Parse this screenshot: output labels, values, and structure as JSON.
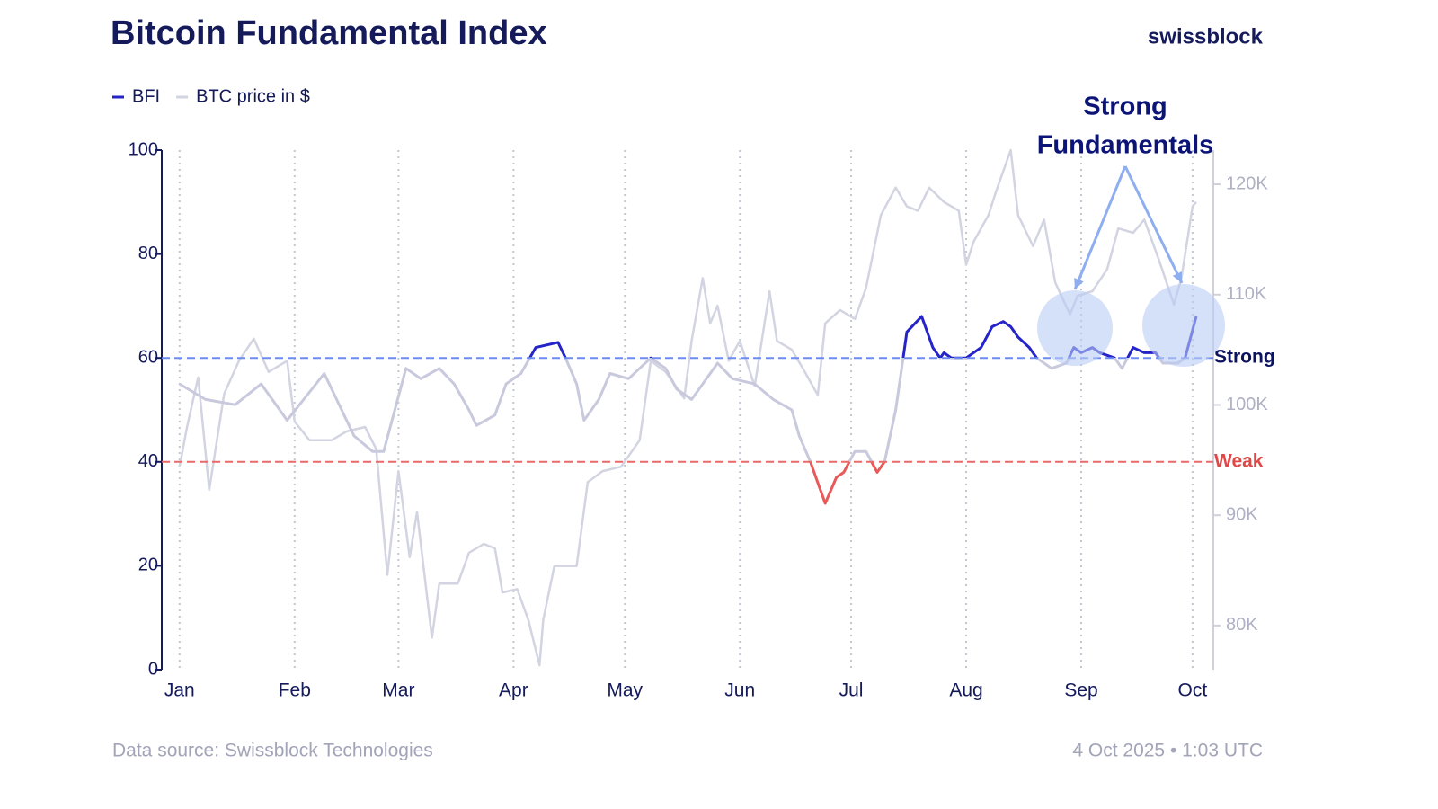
{
  "brand": "swissblock",
  "footer": {
    "source": "Data source: Swissblock Technologies",
    "timestamp": "4 Oct 2025 • 1:03 UTC"
  },
  "chart_data": {
    "type": "line",
    "title": "Bitcoin Fundamental Index",
    "xlim": [
      -4.8,
      278.6
    ],
    "xticks": [
      {
        "value": 0,
        "label": "Jan"
      },
      {
        "value": 31,
        "label": "Feb"
      },
      {
        "value": 59,
        "label": "Mar"
      },
      {
        "value": 90,
        "label": "Apr"
      },
      {
        "value": 120,
        "label": "May"
      },
      {
        "value": 151,
        "label": "Jun"
      },
      {
        "value": 181,
        "label": "Jul"
      },
      {
        "value": 212,
        "label": "Aug"
      },
      {
        "value": 243,
        "label": "Sep"
      },
      {
        "value": 273,
        "label": "Oct"
      }
    ],
    "ylim": [
      0,
      100
    ],
    "yticks": [
      0,
      20,
      40,
      60,
      80,
      100
    ],
    "y2lim": [
      76000,
      123100
    ],
    "y2ticks": [
      {
        "value": 80000,
        "label": "80K"
      },
      {
        "value": 90000,
        "label": "90K"
      },
      {
        "value": 100000,
        "label": "100K"
      },
      {
        "value": 110000,
        "label": "110K"
      },
      {
        "value": 120000,
        "label": "120K"
      }
    ],
    "grid": true,
    "thresholds": [
      {
        "value": 60,
        "label": "Strong",
        "color": "#6e8cf0",
        "line_color": "#2424c8",
        "label_color": "#0c1460"
      },
      {
        "value": 40,
        "label": "Weak",
        "color": "#e86a6a",
        "line_color": "#e85a5a",
        "label_color": "#e04848"
      }
    ],
    "annotation": {
      "lines": [
        "Strong",
        "Fundamentals"
      ]
    },
    "series": [
      {
        "name": "BFI",
        "color": "#c8c9dc",
        "legend_color": "#2424c8",
        "x": [
          0,
          7,
          15,
          22,
          29,
          39,
          47,
          52,
          55,
          61,
          65,
          70,
          74,
          78,
          80,
          85,
          88,
          92,
          96,
          102,
          104,
          107,
          109,
          113,
          116,
          121,
          127,
          131,
          134,
          138,
          143,
          145,
          149,
          155,
          160,
          165,
          167,
          170,
          172,
          174,
          177,
          179,
          182,
          185,
          188,
          190,
          193,
          195,
          196,
          200,
          203,
          205,
          206,
          208,
          212,
          216,
          219,
          222,
          224,
          226,
          229,
          231,
          235,
          239,
          241,
          243,
          246,
          248,
          252,
          254,
          257,
          260,
          263,
          265,
          269,
          271,
          274
        ],
        "values": [
          55,
          52,
          51,
          55,
          48,
          57,
          45,
          42,
          42,
          58,
          56,
          58,
          55,
          50,
          47,
          49,
          55,
          57,
          62,
          63,
          60,
          55,
          48,
          52,
          57,
          56,
          60,
          58,
          54,
          52,
          57,
          59,
          56,
          55,
          52,
          50,
          45,
          40,
          36,
          32,
          37,
          38,
          42,
          42,
          38,
          40,
          50,
          60,
          65,
          68,
          62,
          60,
          61,
          60,
          60,
          62,
          66,
          67,
          66,
          64,
          62,
          60,
          58,
          59,
          62,
          61,
          62,
          61,
          60,
          58,
          62,
          61,
          61,
          59,
          59,
          60,
          68
        ]
      },
      {
        "name": "BTC price in $",
        "color": "#d3d4e2",
        "axis": "y2",
        "x": [
          0,
          2,
          5,
          8,
          12,
          16,
          20,
          24,
          29,
          31,
          35,
          41,
          45,
          50,
          53,
          56,
          59,
          62,
          64,
          68,
          70,
          75,
          78,
          82,
          85,
          87,
          91,
          94,
          97,
          98,
          101,
          107,
          110,
          114,
          119,
          124,
          127,
          131,
          136,
          138,
          141,
          143,
          145,
          148,
          151,
          155,
          159,
          161,
          165,
          168,
          172,
          174,
          178,
          182,
          185,
          189,
          193,
          196,
          199,
          202,
          206,
          210,
          212,
          214,
          218,
          220,
          224,
          226,
          230,
          233,
          236,
          240,
          242,
          246,
          250,
          253,
          257,
          260,
          264,
          268,
          270,
          273,
          274
        ],
        "values": [
          94400,
          98000,
          102500,
          92300,
          101000,
          104000,
          106000,
          103000,
          104000,
          98500,
          96800,
          96800,
          97600,
          98000,
          96000,
          84600,
          94000,
          86200,
          90300,
          78900,
          83800,
          83800,
          86600,
          87400,
          87000,
          83000,
          83300,
          80500,
          76400,
          80500,
          85400,
          85400,
          93000,
          94000,
          94400,
          96800,
          104000,
          103000,
          100600,
          105800,
          111500,
          107400,
          109000,
          104000,
          105800,
          101700,
          110300,
          105800,
          105000,
          103300,
          100900,
          107400,
          108600,
          107800,
          110600,
          117200,
          119700,
          118000,
          117600,
          119700,
          118400,
          117600,
          112700,
          114800,
          117200,
          119300,
          123100,
          117200,
          114400,
          116800,
          111100,
          108200,
          109900,
          110300,
          112300,
          116000,
          115600,
          116800,
          113100,
          109100,
          111500,
          118000,
          118400
        ]
      }
    ]
  }
}
